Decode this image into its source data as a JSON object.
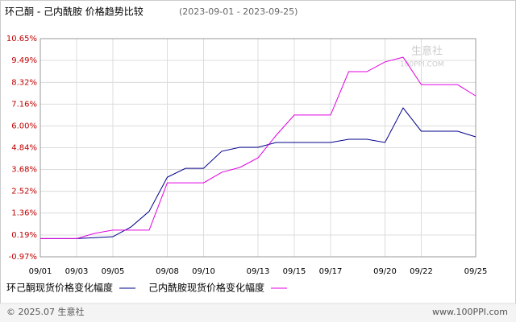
{
  "chart_data": {
    "type": "line",
    "title": "环己酮 - 己内酰胺 价格趋势比较",
    "subtitle": "(2023-09-01 - 2023-09-25)",
    "x": [
      1,
      2,
      3,
      4,
      5,
      6,
      7,
      8,
      9,
      10,
      11,
      12,
      13,
      14,
      15,
      16,
      17,
      18,
      19,
      20,
      21,
      22,
      23,
      24,
      25
    ],
    "xlim": [
      1,
      25
    ],
    "xticks": [
      {
        "value": 1,
        "label": "09/01"
      },
      {
        "value": 3,
        "label": "09/03"
      },
      {
        "value": 5,
        "label": "09/05"
      },
      {
        "value": 8,
        "label": "09/08"
      },
      {
        "value": 10,
        "label": "09/10"
      },
      {
        "value": 13,
        "label": "09/13"
      },
      {
        "value": 15,
        "label": "09/15"
      },
      {
        "value": 17,
        "label": "09/17"
      },
      {
        "value": 20,
        "label": "09/20"
      },
      {
        "value": 22,
        "label": "09/22"
      },
      {
        "value": 25,
        "label": "09/25"
      }
    ],
    "ylim": [
      -0.97,
      10.65
    ],
    "yticks": [
      {
        "value": -0.97,
        "label": "-0.97%"
      },
      {
        "value": 0.19,
        "label": "0.19%"
      },
      {
        "value": 1.36,
        "label": "1.36%"
      },
      {
        "value": 2.52,
        "label": "2.52%"
      },
      {
        "value": 3.68,
        "label": "3.68%"
      },
      {
        "value": 4.84,
        "label": "4.84%"
      },
      {
        "value": 6.0,
        "label": "6.00%"
      },
      {
        "value": 7.16,
        "label": "7.16%"
      },
      {
        "value": 8.32,
        "label": "8.32%"
      },
      {
        "value": 9.49,
        "label": "9.49%"
      },
      {
        "value": 10.65,
        "label": "10.65%"
      }
    ],
    "grid": true,
    "series": [
      {
        "name": "环己酮现货价格变化幅度",
        "color": "#00008b",
        "values": [
          0,
          0,
          0,
          0.05,
          0.1,
          0.62,
          1.45,
          3.27,
          3.74,
          3.74,
          4.65,
          4.86,
          4.86,
          5.12,
          5.12,
          5.12,
          5.12,
          5.29,
          5.29,
          5.12,
          6.96,
          5.72,
          5.72,
          5.72,
          5.42
        ]
      },
      {
        "name": "己内酰胺现货价格变化幅度",
        "color": "#e000e0",
        "values": [
          0,
          0,
          0,
          0.28,
          0.45,
          0.45,
          0.45,
          2.97,
          2.97,
          2.97,
          3.53,
          3.79,
          4.3,
          5.5,
          6.58,
          6.58,
          6.58,
          8.89,
          8.89,
          9.41,
          9.66,
          8.2,
          8.2,
          8.2,
          7.6
        ]
      }
    ],
    "watermark": [
      "生意社",
      "100PPI.COM"
    ],
    "footer_left": "© 2025.07 生意社",
    "footer_right": "www.100PPI.com"
  }
}
